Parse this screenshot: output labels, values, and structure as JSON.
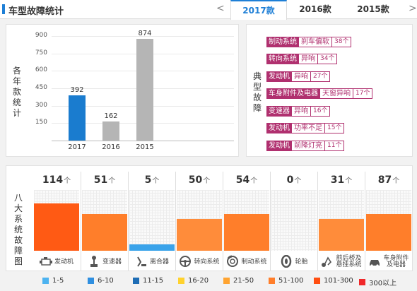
{
  "header": {
    "title": "车型故障统计",
    "prev": "<",
    "next": ">",
    "tabs": [
      {
        "label": "2017款",
        "active": true
      },
      {
        "label": "2016款",
        "active": false
      },
      {
        "label": "2015款",
        "active": false
      }
    ]
  },
  "year_panel": {
    "side_label": "各年款统计",
    "chart_data": {
      "type": "bar",
      "categories": [
        "2017",
        "2016",
        "2015"
      ],
      "values": [
        392,
        162,
        874
      ],
      "colors": [
        "#1a7ccf",
        "#b5b5b5",
        "#b5b5b5"
      ],
      "yticks": [
        "150",
        "300",
        "450",
        "600",
        "750",
        "900"
      ],
      "ylim": [
        0,
        900
      ],
      "grid": true
    }
  },
  "fault_panel": {
    "side_label": "典型故障",
    "items": [
      {
        "system": "制动系统",
        "desc": "刹车偏软",
        "count": "38个"
      },
      {
        "system": "转向系统",
        "desc": "异响",
        "count": "34个"
      },
      {
        "system": "发动机",
        "desc": "异响",
        "count": "27个"
      },
      {
        "system": "车身附件及电器",
        "desc": "天窗异响",
        "count": "17个"
      },
      {
        "system": "变速器",
        "desc": "异响",
        "count": "16个"
      },
      {
        "system": "发动机",
        "desc": "功率不足",
        "count": "15个"
      },
      {
        "system": "发动机",
        "desc": "前降灯亮",
        "count": "11个"
      }
    ]
  },
  "systems_panel": {
    "side_label": "八大系统故障图",
    "unit": "个",
    "systems": [
      {
        "name": "发动机",
        "count": "114",
        "level": 0.78,
        "color": "#ff5a14",
        "icon": "engine-icon"
      },
      {
        "name": "变速器",
        "count": "51",
        "level": 0.6,
        "color": "#ff7e2a",
        "icon": "gear-shift-icon"
      },
      {
        "name": "离合器",
        "count": "5",
        "level": 0.1,
        "color": "#3aa3ea",
        "icon": "clutch-pedal-icon"
      },
      {
        "name": "转向系统",
        "count": "50",
        "level": 0.52,
        "color": "#ff8c3a",
        "icon": "steering-wheel-icon"
      },
      {
        "name": "制动系统",
        "count": "54",
        "level": 0.6,
        "color": "#ff7e2a",
        "icon": "brake-disc-icon"
      },
      {
        "name": "轮胎",
        "count": "0",
        "level": 0,
        "color": "#ffffff",
        "icon": "tire-icon"
      },
      {
        "name": "前后桥及悬挂系统",
        "count": "31",
        "level": 0.52,
        "color": "#ff8c3a",
        "icon": "suspension-icon"
      },
      {
        "name": "车身附件及电器",
        "count": "87",
        "level": 0.6,
        "color": "#ff7e2a",
        "icon": "car-body-icon"
      }
    ]
  },
  "legend": [
    {
      "label": "1-5",
      "color": "#4db3f0"
    },
    {
      "label": "6-10",
      "color": "#2f8fe0"
    },
    {
      "label": "11-15",
      "color": "#1e6db5"
    },
    {
      "label": "16-20",
      "color": "#ffd22e"
    },
    {
      "label": "21-50",
      "color": "#ffa431"
    },
    {
      "label": "51-100",
      "color": "#ff7e2a"
    },
    {
      "label": "101-300",
      "color": "#ff4e11"
    },
    {
      "label": "300以上",
      "color": "#f0282a"
    }
  ]
}
